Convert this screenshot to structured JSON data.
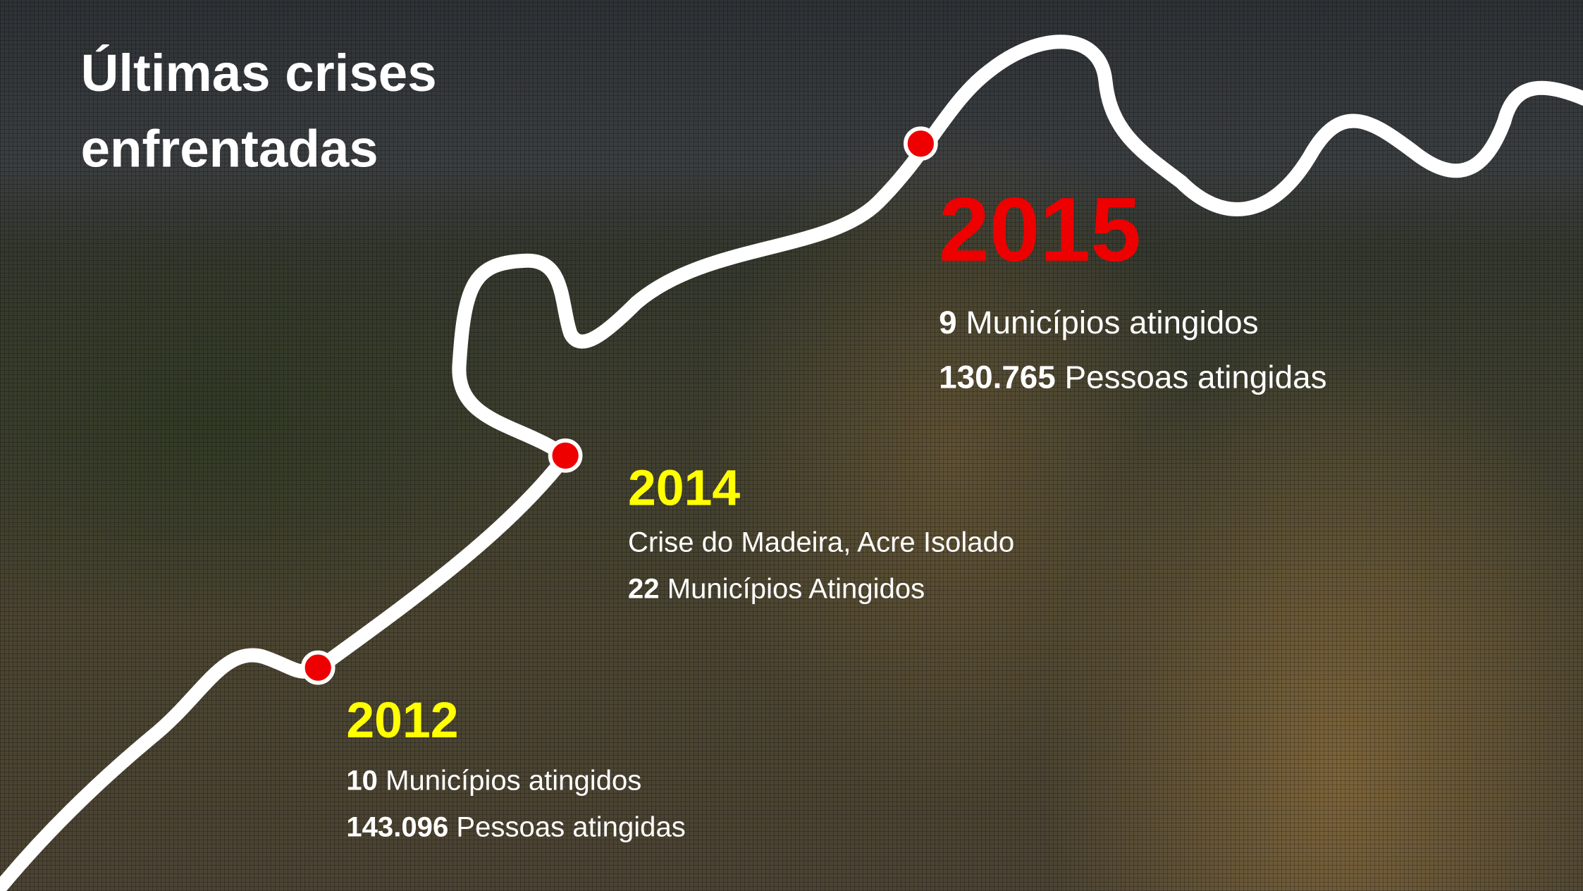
{
  "header": {
    "title": [
      "Últimas crises",
      "enfrentadas"
    ]
  },
  "events": [
    {
      "year": "2015",
      "lines": [
        {
          "number": "9",
          "text": "Municípios atingidos"
        },
        {
          "number": "130.765",
          "text": "Pessoas atingidas"
        }
      ]
    },
    {
      "year": "2014",
      "lines": [
        {
          "text": "Crise do Madeira, Acre Isolado"
        },
        {
          "number": "22",
          "text": "Municípios Atingidos"
        }
      ]
    },
    {
      "year": "2012",
      "lines": [
        {
          "number": "10",
          "text": "Municípios atingidos"
        },
        {
          "number": "143.096",
          "text": "Pessoas atingidas"
        }
      ]
    }
  ]
}
